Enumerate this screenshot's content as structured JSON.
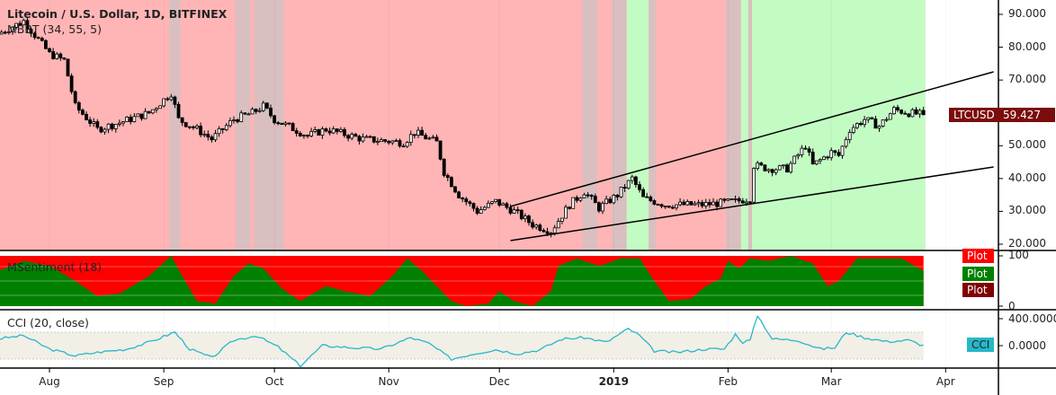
{
  "header": {
    "title": "Litecoin / U.S. Dollar, 1D, BITFINEX",
    "indicator": "MBBT (34, 55, 5)"
  },
  "sentiment_pane": {
    "title": "MSentiment (18)",
    "axis": [
      "100",
      "0"
    ],
    "plot_labels": [
      {
        "text": "Plot",
        "color": "#ff0000"
      },
      {
        "text": "Plot",
        "color": "#008000"
      },
      {
        "text": "Plot",
        "color": "#800000"
      }
    ]
  },
  "cci_pane": {
    "title": "CCI (20, close)",
    "axis": [
      "400.0000",
      "0.0000"
    ],
    "tag": "CCI",
    "tag_color": "#26b8c8",
    "line_color": "#26b8c8"
  },
  "price_axis": {
    "ticks": [
      "90.000",
      "80.000",
      "70.000",
      "60.000",
      "50.000",
      "40.000",
      "30.000",
      "20.000"
    ],
    "symbol": "LTCUSD",
    "last_price": "59.427",
    "tag_color": "#7b0c0c"
  },
  "time_axis": [
    {
      "label": "Aug",
      "date": "2018-08-01"
    },
    {
      "label": "Sep",
      "date": "2018-09-01"
    },
    {
      "label": "Oct",
      "date": "2018-10-01"
    },
    {
      "label": "Nov",
      "date": "2018-11-01"
    },
    {
      "label": "Dec",
      "date": "2018-12-01"
    },
    {
      "label": "2019",
      "date": "2019-01-01",
      "bold": true
    },
    {
      "label": "Feb",
      "date": "2019-02-01"
    },
    {
      "label": "Mar",
      "date": "2019-03-01"
    },
    {
      "label": "Apr",
      "date": "2019-04-01"
    }
  ],
  "colors": {
    "bearish_bg": "#ffb5b5",
    "bullish_bg": "#c3fcc3",
    "neutral_bg": "#d9bfc0",
    "sent_red": "#ff0000",
    "sent_green": "#008000"
  },
  "chart_data": {
    "type": "candlestick",
    "price_range": [
      20,
      90
    ],
    "closes": [
      [
        "2018-07-18",
        84
      ],
      [
        "2018-07-25",
        88
      ],
      [
        "2018-08-01",
        78
      ],
      [
        "2018-08-05",
        76
      ],
      [
        "2018-08-08",
        62
      ],
      [
        "2018-08-14",
        55
      ],
      [
        "2018-08-20",
        57
      ],
      [
        "2018-08-28",
        60
      ],
      [
        "2018-09-03",
        66
      ],
      [
        "2018-09-05",
        58
      ],
      [
        "2018-09-10",
        55
      ],
      [
        "2018-09-14",
        52
      ],
      [
        "2018-09-20",
        58
      ],
      [
        "2018-09-25",
        60
      ],
      [
        "2018-09-28",
        62
      ],
      [
        "2018-10-01",
        58
      ],
      [
        "2018-10-10",
        53
      ],
      [
        "2018-10-15",
        55
      ],
      [
        "2018-10-25",
        52
      ],
      [
        "2018-11-05",
        51
      ],
      [
        "2018-11-08",
        54
      ],
      [
        "2018-11-14",
        51
      ],
      [
        "2018-11-16",
        42
      ],
      [
        "2018-11-20",
        35
      ],
      [
        "2018-11-25",
        30
      ],
      [
        "2018-11-30",
        33
      ],
      [
        "2018-12-05",
        30
      ],
      [
        "2018-12-10",
        26
      ],
      [
        "2018-12-15",
        24
      ],
      [
        "2018-12-20",
        32
      ],
      [
        "2018-12-24",
        36
      ],
      [
        "2018-12-28",
        31
      ],
      [
        "2019-01-02",
        35
      ],
      [
        "2019-01-06",
        40
      ],
      [
        "2019-01-09",
        34
      ],
      [
        "2019-01-15",
        32
      ],
      [
        "2019-01-25",
        32
      ],
      [
        "2019-02-03",
        33
      ],
      [
        "2019-02-07",
        34
      ],
      [
        "2019-02-08",
        44
      ],
      [
        "2019-02-12",
        43
      ],
      [
        "2019-02-17",
        43
      ],
      [
        "2019-02-22",
        50
      ],
      [
        "2019-02-24",
        44
      ],
      [
        "2019-03-01",
        48
      ],
      [
        "2019-03-03",
        47
      ],
      [
        "2019-03-06",
        55
      ],
      [
        "2019-03-10",
        58
      ],
      [
        "2019-03-14",
        56
      ],
      [
        "2019-03-18",
        61
      ],
      [
        "2019-03-22",
        60
      ],
      [
        "2019-03-26",
        59.427
      ]
    ],
    "trendlines": [
      {
        "from": [
          "2018-12-04",
          31.5
        ],
        "to": [
          "2019-04-14",
          72.5
        ]
      },
      {
        "from": [
          "2018-12-04",
          21.1
        ],
        "to": [
          "2019-04-14",
          43.5
        ]
      }
    ],
    "background": [
      {
        "start": "2018-07-18",
        "end": "2019-03-26",
        "state": "bearish"
      },
      {
        "start": "2018-09-03",
        "end": "2018-09-05",
        "state": "neutral"
      },
      {
        "start": "2018-09-21",
        "end": "2018-09-24",
        "state": "neutral"
      },
      {
        "start": "2018-09-26",
        "end": "2018-10-03",
        "state": "neutral"
      },
      {
        "start": "2018-12-24",
        "end": "2018-12-27",
        "state": "neutral"
      },
      {
        "start": "2019-01-01",
        "end": "2019-01-04",
        "state": "neutral"
      },
      {
        "start": "2019-01-05",
        "end": "2019-01-10",
        "state": "bullish"
      },
      {
        "start": "2019-01-11",
        "end": "2019-01-12",
        "state": "neutral"
      },
      {
        "start": "2019-02-01",
        "end": "2019-02-04",
        "state": "neutral"
      },
      {
        "start": "2019-02-05",
        "end": "2019-02-06",
        "state": "bullish"
      },
      {
        "start": "2019-02-07",
        "end": "2019-02-07",
        "state": "neutral"
      },
      {
        "start": "2019-02-08",
        "end": "2019-03-26",
        "state": "bullish"
      }
    ],
    "sentiment": [
      [
        "2018-07-18",
        70
      ],
      [
        "2018-07-25",
        90
      ],
      [
        "2018-08-01",
        80
      ],
      [
        "2018-08-08",
        50
      ],
      [
        "2018-08-14",
        20
      ],
      [
        "2018-08-20",
        25
      ],
      [
        "2018-08-28",
        60
      ],
      [
        "2018-09-03",
        100
      ],
      [
        "2018-09-06",
        60
      ],
      [
        "2018-09-10",
        10
      ],
      [
        "2018-09-15",
        5
      ],
      [
        "2018-09-20",
        60
      ],
      [
        "2018-09-24",
        85
      ],
      [
        "2018-09-28",
        75
      ],
      [
        "2018-10-03",
        35
      ],
      [
        "2018-10-08",
        10
      ],
      [
        "2018-10-15",
        40
      ],
      [
        "2018-10-20",
        30
      ],
      [
        "2018-10-27",
        20
      ],
      [
        "2018-11-02",
        60
      ],
      [
        "2018-11-06",
        95
      ],
      [
        "2018-11-10",
        70
      ],
      [
        "2018-11-14",
        40
      ],
      [
        "2018-11-18",
        10
      ],
      [
        "2018-11-22",
        0
      ],
      [
        "2018-11-28",
        5
      ],
      [
        "2018-12-01",
        30
      ],
      [
        "2018-12-05",
        10
      ],
      [
        "2018-12-10",
        0
      ],
      [
        "2018-12-15",
        30
      ],
      [
        "2018-12-17",
        80
      ],
      [
        "2018-12-22",
        95
      ],
      [
        "2018-12-28",
        80
      ],
      [
        "2019-01-03",
        95
      ],
      [
        "2019-01-08",
        95
      ],
      [
        "2019-01-12",
        50
      ],
      [
        "2019-01-16",
        10
      ],
      [
        "2019-01-22",
        15
      ],
      [
        "2019-01-26",
        40
      ],
      [
        "2019-01-30",
        55
      ],
      [
        "2019-02-01",
        90
      ],
      [
        "2019-02-04",
        75
      ],
      [
        "2019-02-07",
        95
      ],
      [
        "2019-02-12",
        90
      ],
      [
        "2019-02-18",
        100
      ],
      [
        "2019-02-24",
        85
      ],
      [
        "2019-02-28",
        40
      ],
      [
        "2019-03-03",
        50
      ],
      [
        "2019-03-08",
        95
      ],
      [
        "2019-03-15",
        95
      ],
      [
        "2019-03-20",
        95
      ],
      [
        "2019-03-26",
        70
      ]
    ],
    "cci": [
      [
        "2018-07-18",
        100
      ],
      [
        "2018-07-25",
        150
      ],
      [
        "2018-08-01",
        -50
      ],
      [
        "2018-08-08",
        -150
      ],
      [
        "2018-08-14",
        -100
      ],
      [
        "2018-08-22",
        -50
      ],
      [
        "2018-08-28",
        50
      ],
      [
        "2018-09-04",
        200
      ],
      [
        "2018-09-08",
        -50
      ],
      [
        "2018-09-14",
        -180
      ],
      [
        "2018-09-20",
        80
      ],
      [
        "2018-09-26",
        150
      ],
      [
        "2018-10-02",
        -20
      ],
      [
        "2018-10-08",
        -300
      ],
      [
        "2018-10-14",
        0
      ],
      [
        "2018-10-22",
        -30
      ],
      [
        "2018-10-30",
        -50
      ],
      [
        "2018-11-07",
        120
      ],
      [
        "2018-11-12",
        30
      ],
      [
        "2018-11-18",
        -200
      ],
      [
        "2018-11-24",
        -120
      ],
      [
        "2018-11-30",
        -60
      ],
      [
        "2018-12-06",
        -120
      ],
      [
        "2018-12-12",
        -60
      ],
      [
        "2018-12-18",
        100
      ],
      [
        "2018-12-24",
        120
      ],
      [
        "2018-12-30",
        50
      ],
      [
        "2019-01-05",
        250
      ],
      [
        "2019-01-08",
        150
      ],
      [
        "2019-01-12",
        -80
      ],
      [
        "2019-01-18",
        -100
      ],
      [
        "2019-01-26",
        -50
      ],
      [
        "2019-01-31",
        -50
      ],
      [
        "2019-02-03",
        170
      ],
      [
        "2019-02-05",
        50
      ],
      [
        "2019-02-07",
        80
      ],
      [
        "2019-02-09",
        450
      ],
      [
        "2019-02-13",
        100
      ],
      [
        "2019-02-20",
        80
      ],
      [
        "2019-02-26",
        -50
      ],
      [
        "2019-03-02",
        -30
      ],
      [
        "2019-03-05",
        200
      ],
      [
        "2019-03-10",
        120
      ],
      [
        "2019-03-16",
        60
      ],
      [
        "2019-03-22",
        80
      ],
      [
        "2019-03-26",
        0
      ]
    ]
  }
}
